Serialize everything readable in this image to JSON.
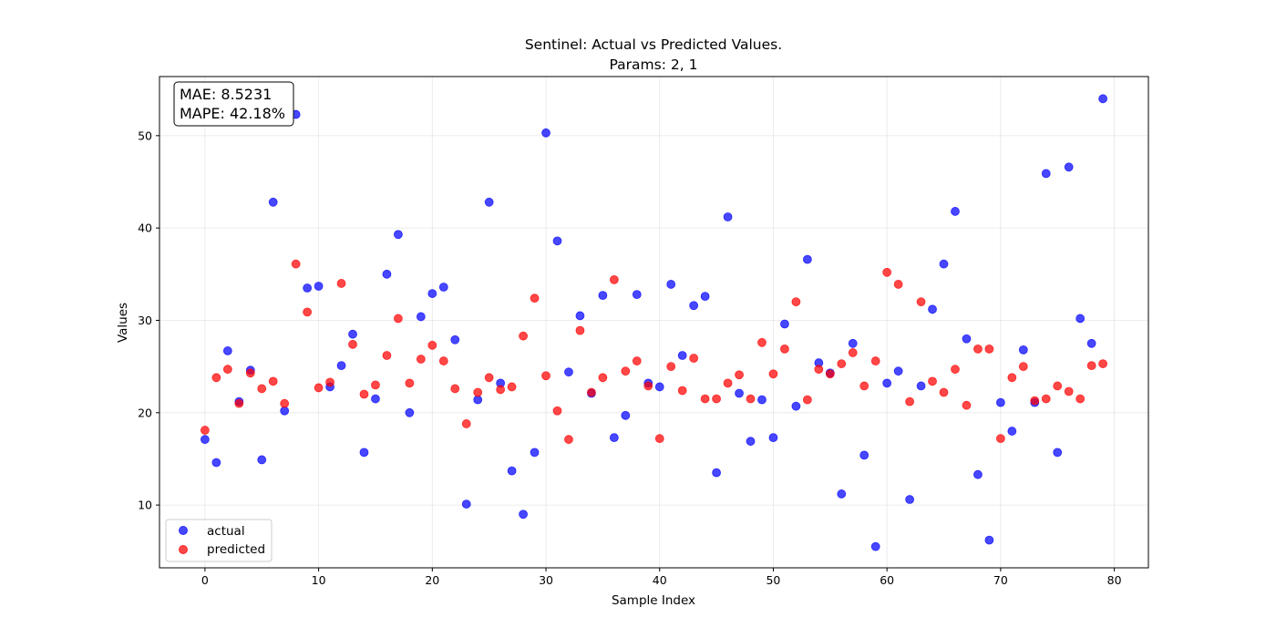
{
  "chart_data": {
    "type": "scatter",
    "title": "Sentinel: Actual vs Predicted Values.",
    "subtitle": "Params: 2, 1",
    "xlabel": "Sample Index",
    "ylabel": "Values",
    "xlim": [
      -4,
      83
    ],
    "ylim": [
      3.2,
      56.4
    ],
    "xticks": [
      0,
      10,
      20,
      30,
      40,
      50,
      60,
      70,
      80
    ],
    "yticks": [
      10,
      20,
      30,
      40,
      50
    ],
    "grid": true,
    "legend_position": "lower-left",
    "stats": {
      "mae": "MAE: 8.5231",
      "mape": "MAPE: 42.18%"
    },
    "series": [
      {
        "name": "actual",
        "color": "#0000ff",
        "x": [
          0,
          1,
          2,
          3,
          4,
          5,
          6,
          7,
          8,
          9,
          10,
          11,
          12,
          13,
          14,
          15,
          16,
          17,
          18,
          19,
          20,
          21,
          22,
          23,
          24,
          25,
          26,
          27,
          28,
          29,
          30,
          31,
          32,
          33,
          34,
          35,
          36,
          37,
          38,
          39,
          40,
          41,
          42,
          43,
          44,
          45,
          46,
          47,
          48,
          49,
          50,
          51,
          52,
          53,
          54,
          55,
          56,
          57,
          58,
          59,
          60,
          61,
          62,
          63,
          64,
          65,
          66,
          67,
          68,
          69,
          70,
          71,
          72,
          73,
          74,
          75,
          76,
          77,
          78,
          79
        ],
        "y": [
          17.1,
          14.6,
          26.7,
          21.2,
          24.6,
          14.9,
          42.8,
          20.2,
          52.3,
          33.5,
          33.7,
          22.8,
          25.1,
          28.5,
          15.7,
          21.5,
          35.0,
          39.3,
          20.0,
          30.4,
          32.9,
          33.6,
          27.9,
          10.1,
          21.4,
          42.8,
          23.2,
          13.7,
          9.0,
          15.7,
          50.3,
          38.6,
          24.4,
          30.5,
          22.1,
          32.7,
          17.3,
          19.7,
          32.8,
          23.2,
          22.8,
          33.9,
          26.2,
          31.6,
          32.6,
          13.5,
          41.2,
          22.1,
          16.9,
          21.4,
          17.3,
          29.6,
          20.7,
          36.6,
          25.4,
          24.3,
          11.2,
          27.5,
          15.4,
          5.5,
          23.2,
          24.5,
          10.6,
          22.9,
          31.2,
          36.1,
          41.8,
          28.0,
          13.3,
          6.2,
          21.1,
          18.0,
          26.8,
          21.1,
          45.9,
          15.7,
          46.6,
          30.2,
          27.5,
          54.0
        ]
      },
      {
        "name": "predicted",
        "color": "#ff0000",
        "x": [
          0,
          1,
          2,
          3,
          4,
          5,
          6,
          7,
          8,
          9,
          10,
          11,
          12,
          13,
          14,
          15,
          16,
          17,
          18,
          19,
          20,
          21,
          22,
          23,
          24,
          25,
          26,
          27,
          28,
          29,
          30,
          31,
          32,
          33,
          34,
          35,
          36,
          37,
          38,
          39,
          40,
          41,
          42,
          43,
          44,
          45,
          46,
          47,
          48,
          49,
          50,
          51,
          52,
          53,
          54,
          55,
          56,
          57,
          58,
          59,
          60,
          61,
          62,
          63,
          64,
          65,
          66,
          67,
          68,
          69,
          70,
          71,
          72,
          73,
          74,
          75,
          76,
          77,
          78,
          79
        ],
        "y": [
          18.1,
          23.8,
          24.7,
          21.0,
          24.3,
          22.6,
          23.4,
          21.0,
          36.1,
          30.9,
          22.7,
          23.3,
          34.0,
          27.4,
          22.0,
          23.0,
          26.2,
          30.2,
          23.2,
          25.8,
          27.3,
          25.6,
          22.6,
          18.8,
          22.2,
          23.8,
          22.5,
          22.8,
          28.3,
          32.4,
          24.0,
          20.2,
          17.1,
          28.9,
          22.2,
          23.8,
          34.4,
          24.5,
          25.6,
          22.9,
          17.2,
          25.0,
          22.4,
          25.9,
          21.5,
          21.5,
          23.2,
          24.1,
          21.5,
          27.6,
          24.2,
          26.9,
          32.0,
          21.4,
          24.7,
          24.2,
          25.3,
          26.5,
          22.9,
          25.6,
          35.2,
          33.9,
          21.2,
          32.0,
          23.4,
          22.2,
          24.7,
          20.8,
          26.9,
          26.9,
          17.2,
          23.8,
          25.0,
          21.3,
          21.5,
          22.9,
          22.3,
          21.5,
          25.1,
          25.3
        ]
      }
    ]
  }
}
